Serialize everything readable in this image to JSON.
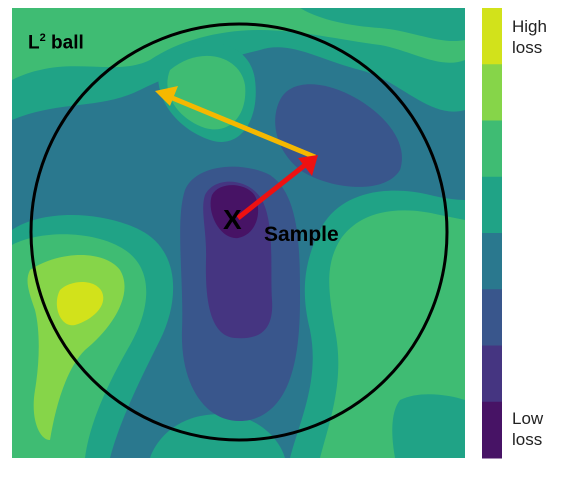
{
  "diagram": {
    "ball_label": {
      "base": "L",
      "superscript": "2",
      "suffix": "ball"
    },
    "point_label": "X",
    "sample_label": "Sample",
    "colorbar": {
      "top_label": "High loss",
      "bottom_label": "Low loss",
      "colors": [
        "#d2e21b",
        "#86d549",
        "#3fbc73",
        "#20a386",
        "#2a788e",
        "#39568c",
        "#453581",
        "#471365"
      ]
    }
  }
}
